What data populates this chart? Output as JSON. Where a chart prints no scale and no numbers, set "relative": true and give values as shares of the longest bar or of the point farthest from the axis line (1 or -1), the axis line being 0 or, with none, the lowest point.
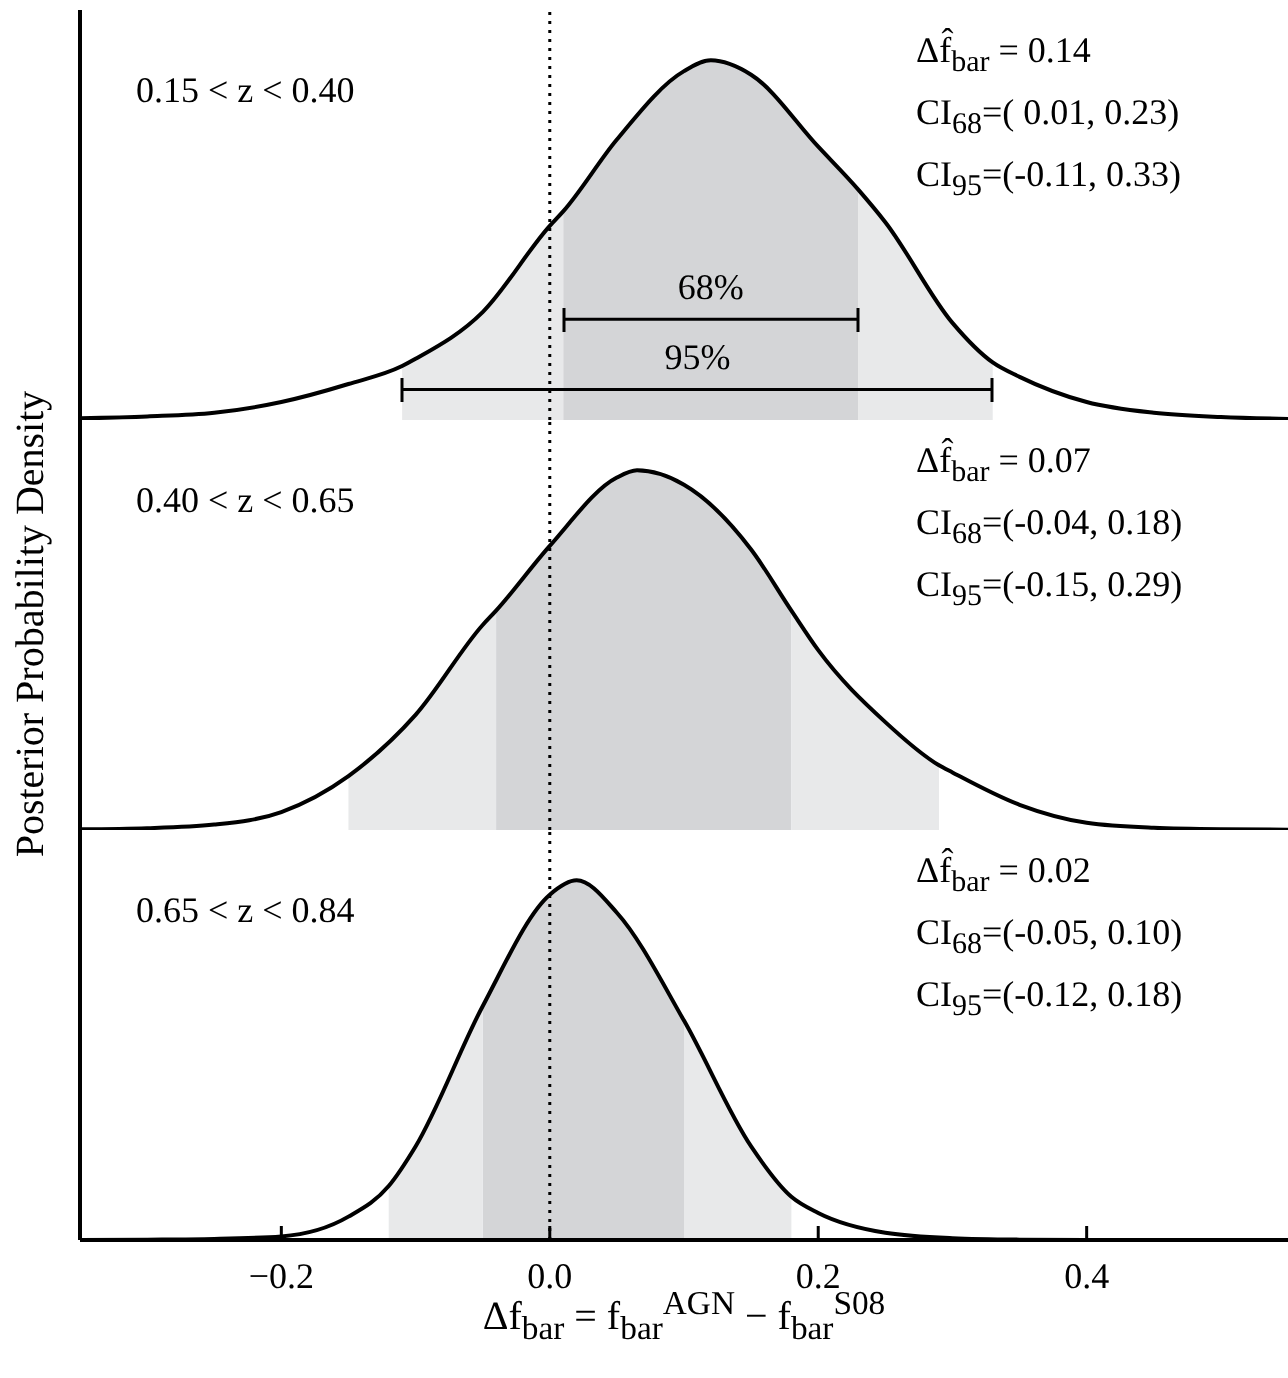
{
  "chart_data": [
    {
      "type": "line",
      "relative": true,
      "tick_labels": false,
      "xlim": [
        -0.35,
        0.55
      ],
      "xticks": [
        -0.2,
        0,
        0.2,
        0.4
      ],
      "x": [
        -0.35,
        -0.3,
        -0.25,
        -0.2,
        -0.15,
        -0.11,
        -0.1,
        -0.05,
        0,
        0.01,
        0.05,
        0.1,
        0.12,
        0.15,
        0.2,
        0.23,
        0.25,
        0.3,
        0.33,
        0.35,
        0.4,
        0.45,
        0.5,
        0.55
      ],
      "series": [
        {
          "color": "#000000",
          "values": [
            0.005,
            0.01,
            0.02,
            0.05,
            0.1,
            0.15,
            0.17,
            0.3,
            0.54,
            0.58,
            0.78,
            0.97,
            1.0,
            0.96,
            0.76,
            0.64,
            0.55,
            0.27,
            0.16,
            0.12,
            0.05,
            0.02,
            0.008,
            0.003
          ]
        },
        {
          "type": "line",
          "color": "#000000",
          "x": [
            0.01,
            0.23
          ],
          "values": [
            0.28,
            0.28
          ]
        },
        {
          "type": "line",
          "color": "#000000",
          "x": [
            -0.11,
            0.33
          ],
          "values": [
            0.085,
            0.085
          ]
        },
        {
          "type": "area",
          "color": "#d4d5d7",
          "x": [
            0.01,
            0.05,
            0.1,
            0.12,
            0.15,
            0.2,
            0.23
          ],
          "values": [
            0.58,
            0.78,
            0.97,
            1.0,
            0.96,
            0.76,
            0.64
          ]
        },
        {
          "type": "area",
          "color": "#e8e9ea",
          "x": [
            -0.11,
            -0.1,
            -0.05,
            0,
            0.01
          ],
          "values": [
            0.15,
            0.17,
            0.3,
            0.54,
            0.58
          ]
        },
        {
          "type": "area",
          "color": "#e8e9ea",
          "x": [
            0.23,
            0.25,
            0.3,
            0.33
          ],
          "values": [
            0.64,
            0.55,
            0.27,
            0.16
          ]
        }
      ],
      "ref_lines": [
        {
          "axis": "x",
          "value": 0,
          "color": "#000000",
          "line_style": "dotted"
        }
      ],
      "annotations": [
        "0.15 < z < 0.40",
        "Δf̂$_{bar}$ = 0.14",
        "CI$_{68}$=( 0.01, 0.23)",
        "CI$_{95}$=(-0.11, 0.33)",
        "68%",
        "95%"
      ]
    },
    {
      "type": "line",
      "relative": true,
      "tick_labels": false,
      "xlim": [
        -0.35,
        0.55
      ],
      "xticks": [
        -0.2,
        0,
        0.2,
        0.4
      ],
      "ylabel": "Posterior Probability Density",
      "x": [
        -0.35,
        -0.3,
        -0.25,
        -0.2,
        -0.15,
        -0.1,
        -0.05,
        -0.04,
        0,
        0.05,
        0.065,
        0.1,
        0.15,
        0.18,
        0.2,
        0.25,
        0.29,
        0.3,
        0.35,
        0.4,
        0.45,
        0.5,
        0.55
      ],
      "series": [
        {
          "color": "#000000",
          "values": [
            0.002,
            0.005,
            0.015,
            0.05,
            0.15,
            0.32,
            0.57,
            0.61,
            0.79,
            0.98,
            1.0,
            0.96,
            0.78,
            0.61,
            0.5,
            0.3,
            0.18,
            0.16,
            0.07,
            0.02,
            0.006,
            0.002,
            0.001
          ]
        },
        {
          "type": "area",
          "color": "#d4d5d7",
          "x": [
            -0.04,
            0,
            0.05,
            0.065,
            0.1,
            0.15,
            0.18
          ],
          "values": [
            0.61,
            0.79,
            0.98,
            1.0,
            0.96,
            0.78,
            0.61
          ]
        },
        {
          "type": "area",
          "color": "#e8e9ea",
          "x": [
            -0.15,
            -0.1,
            -0.05,
            -0.04
          ],
          "values": [
            0.15,
            0.32,
            0.57,
            0.61
          ]
        },
        {
          "type": "area",
          "color": "#e8e9ea",
          "x": [
            0.18,
            0.2,
            0.25,
            0.29
          ],
          "values": [
            0.61,
            0.5,
            0.3,
            0.18
          ]
        }
      ],
      "ref_lines": [
        {
          "axis": "x",
          "value": 0,
          "color": "#000000",
          "line_style": "dotted"
        }
      ],
      "annotations": [
        "0.40 < z < 0.65",
        "Δf̂$_{bar}$ = 0.07",
        "CI$_{68}$=(-0.04, 0.18)",
        "CI$_{95}$=(-0.15, 0.29)"
      ]
    },
    {
      "type": "line",
      "relative": true,
      "tick_labels": "x",
      "xlim": [
        -0.35,
        0.55
      ],
      "xticks": [
        {
          "value": -0.2,
          "label": "−0.2"
        },
        {
          "value": 0,
          "label": "0.0"
        },
        0.2,
        0.4
      ],
      "xlabel": "Δf$_{bar}$ = f$_{bar}$$^{AGN}$ − f$_{bar}$$^{S08}$",
      "x": [
        -0.35,
        -0.3,
        -0.25,
        -0.2,
        -0.15,
        -0.12,
        -0.1,
        -0.05,
        0,
        0.02,
        0.05,
        0.1,
        0.15,
        0.18,
        0.2,
        0.25,
        0.3,
        0.35,
        0.4,
        0.45,
        0.5,
        0.55
      ],
      "series": [
        {
          "color": "#000000",
          "values": [
            0,
            0.001,
            0.003,
            0.01,
            0.065,
            0.15,
            0.26,
            0.65,
            0.96,
            1.0,
            0.91,
            0.61,
            0.26,
            0.12,
            0.075,
            0.02,
            0.005,
            0.001,
            0,
            0,
            0,
            0
          ]
        },
        {
          "type": "area",
          "color": "#d4d5d7",
          "x": [
            -0.05,
            0,
            0.02,
            0.05,
            0.1
          ],
          "values": [
            0.65,
            0.96,
            1.0,
            0.91,
            0.61
          ]
        },
        {
          "type": "area",
          "color": "#e8e9ea",
          "x": [
            -0.12,
            -0.1,
            -0.05
          ],
          "values": [
            0.15,
            0.26,
            0.65
          ]
        },
        {
          "type": "area",
          "color": "#e8e9ea",
          "x": [
            0.1,
            0.15,
            0.18
          ],
          "values": [
            0.61,
            0.26,
            0.12
          ]
        }
      ],
      "ref_lines": [
        {
          "axis": "x",
          "value": 0,
          "color": "#000000",
          "line_style": "dotted"
        }
      ],
      "annotations": [
        "0.65 < z < 0.84",
        "Δf̂$_{bar}$ = 0.02",
        "CI$_{68}$=(-0.05, 0.10)",
        "CI$_{95}$=(-0.12, 0.18)"
      ]
    }
  ]
}
